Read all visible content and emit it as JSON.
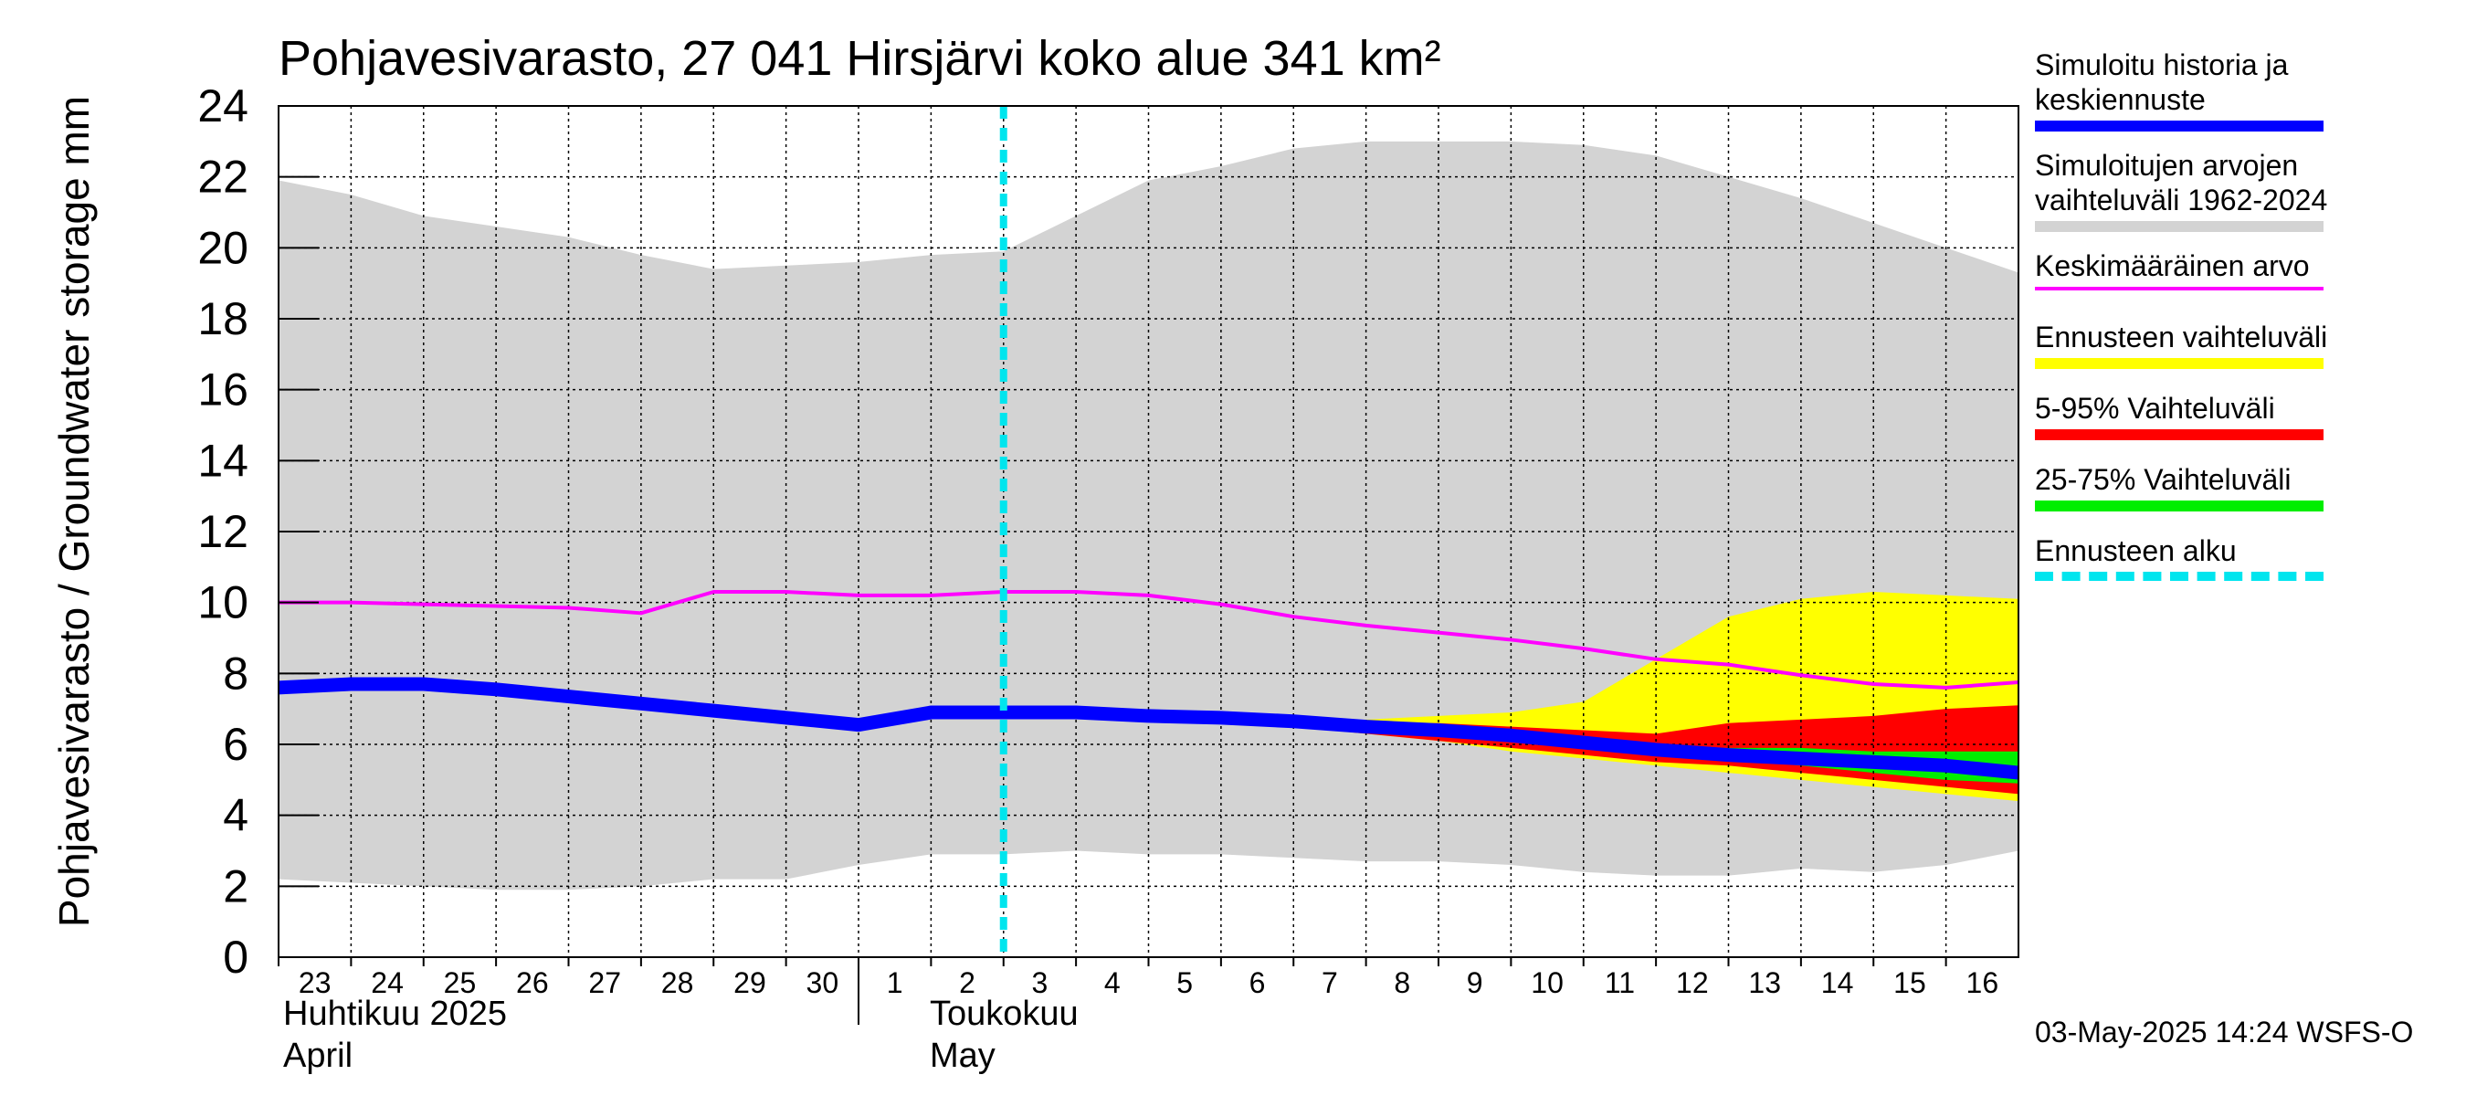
{
  "chart_data": {
    "type": "area",
    "title": "Pohjavesivarasto, 27 041 Hirsjärvi koko alue 341 km²",
    "ylabel": "Pohjavesivarasto / Groundwater storage   mm",
    "ylim": [
      0,
      24
    ],
    "yticks": [
      "0",
      "2",
      "4",
      "6",
      "8",
      "10",
      "12",
      "14",
      "16",
      "18",
      "20",
      "22",
      "24"
    ],
    "x_day_labels": [
      "23",
      "24",
      "25",
      "26",
      "27",
      "28",
      "29",
      "30",
      "1",
      "2",
      "3",
      "4",
      "5",
      "6",
      "7",
      "8",
      "9",
      "10",
      "11",
      "12",
      "13",
      "14",
      "15",
      "16"
    ],
    "month_labels": [
      {
        "fi": "Huhtikuu  2025",
        "en": "April"
      },
      {
        "fi": "Toukokuu",
        "en": "May"
      }
    ],
    "grid": true,
    "legend_position": "right",
    "forecast_start": "2025-05-03",
    "series": [
      {
        "name": "Simuloitujen arvojen vaihteluväli 1962-2024",
        "color": "#d3d3d3",
        "kind": "band",
        "x": [
          "2025-04-23",
          "2025-04-24",
          "2025-04-25",
          "2025-04-26",
          "2025-04-27",
          "2025-04-28",
          "2025-04-29",
          "2025-04-30",
          "2025-05-01",
          "2025-05-02",
          "2025-05-03",
          "2025-05-04",
          "2025-05-05",
          "2025-05-06",
          "2025-05-07",
          "2025-05-08",
          "2025-05-09",
          "2025-05-10",
          "2025-05-11",
          "2025-05-12",
          "2025-05-13",
          "2025-05-14",
          "2025-05-15",
          "2025-05-16",
          "2025-05-17"
        ],
        "upper": [
          21.9,
          21.5,
          20.9,
          20.6,
          20.3,
          19.8,
          19.4,
          19.5,
          19.6,
          19.8,
          19.9,
          20.9,
          21.9,
          22.3,
          22.8,
          23.0,
          23.0,
          23.0,
          22.9,
          22.6,
          22.0,
          21.4,
          20.7,
          20.0,
          19.3
        ],
        "lower": [
          2.2,
          2.1,
          2.0,
          1.9,
          1.9,
          2.0,
          2.2,
          2.2,
          2.6,
          2.9,
          2.9,
          3.0,
          2.9,
          2.9,
          2.8,
          2.7,
          2.7,
          2.6,
          2.4,
          2.3,
          2.3,
          2.5,
          2.4,
          2.6,
          3.0
        ]
      },
      {
        "name": "Ennusteen vaihteluväli",
        "color": "#ffff00",
        "kind": "band",
        "x": [
          "2025-05-07",
          "2025-05-08",
          "2025-05-09",
          "2025-05-10",
          "2025-05-11",
          "2025-05-12",
          "2025-05-13",
          "2025-05-14",
          "2025-05-15",
          "2025-05-16",
          "2025-05-17"
        ],
        "upper": [
          6.6,
          6.7,
          6.8,
          6.9,
          7.2,
          8.4,
          9.6,
          10.1,
          10.3,
          10.2,
          10.1
        ],
        "lower": [
          6.5,
          6.3,
          6.1,
          5.8,
          5.6,
          5.4,
          5.2,
          5.0,
          4.8,
          4.6,
          4.4
        ]
      },
      {
        "name": "5-95% Vaihteluväli",
        "color": "#ff0000",
        "kind": "band",
        "x": [
          "2025-05-07",
          "2025-05-08",
          "2025-05-09",
          "2025-05-10",
          "2025-05-11",
          "2025-05-12",
          "2025-05-13",
          "2025-05-14",
          "2025-05-15",
          "2025-05-16",
          "2025-05-17"
        ],
        "upper": [
          6.6,
          6.6,
          6.6,
          6.5,
          6.4,
          6.3,
          6.6,
          6.7,
          6.8,
          7.0,
          7.1
        ],
        "lower": [
          6.5,
          6.3,
          6.1,
          5.9,
          5.7,
          5.5,
          5.4,
          5.2,
          5.0,
          4.8,
          4.6
        ]
      },
      {
        "name": "25-75% Vaihteluväli",
        "color": "#00ee00",
        "kind": "band",
        "x": [
          "2025-05-07",
          "2025-05-08",
          "2025-05-09",
          "2025-05-10",
          "2025-05-11",
          "2025-05-12",
          "2025-05-13",
          "2025-05-14",
          "2025-05-15",
          "2025-05-16",
          "2025-05-17"
        ],
        "upper": [
          6.6,
          6.5,
          6.4,
          6.2,
          6.1,
          5.9,
          5.9,
          5.9,
          5.8,
          5.8,
          5.8
        ],
        "lower": [
          6.6,
          6.5,
          6.3,
          6.1,
          5.9,
          5.8,
          5.6,
          5.4,
          5.2,
          5.0,
          4.9
        ]
      },
      {
        "name": "Keskimääräinen arvo",
        "color": "#ff00ff",
        "kind": "line",
        "x": [
          "2025-04-23",
          "2025-04-24",
          "2025-04-25",
          "2025-04-26",
          "2025-04-27",
          "2025-04-28",
          "2025-04-29",
          "2025-04-30",
          "2025-05-01",
          "2025-05-02",
          "2025-05-03",
          "2025-05-04",
          "2025-05-05",
          "2025-05-06",
          "2025-05-07",
          "2025-05-08",
          "2025-05-09",
          "2025-05-10",
          "2025-05-11",
          "2025-05-12",
          "2025-05-13",
          "2025-05-14",
          "2025-05-15",
          "2025-05-16",
          "2025-05-17"
        ],
        "y": [
          10.0,
          10.0,
          9.95,
          9.9,
          9.85,
          9.7,
          10.3,
          10.3,
          10.2,
          10.2,
          10.3,
          10.3,
          10.2,
          9.95,
          9.6,
          9.35,
          9.15,
          8.95,
          8.7,
          8.4,
          8.25,
          7.95,
          7.7,
          7.6,
          7.75
        ]
      },
      {
        "name": "Simuloitu historia ja\nkeskiennuste",
        "color": "#0000ff",
        "kind": "line",
        "x": [
          "2025-04-23",
          "2025-04-24",
          "2025-04-25",
          "2025-04-26",
          "2025-04-27",
          "2025-04-28",
          "2025-04-29",
          "2025-04-30",
          "2025-05-01",
          "2025-05-02",
          "2025-05-03",
          "2025-05-04",
          "2025-05-05",
          "2025-05-06",
          "2025-05-07",
          "2025-05-08",
          "2025-05-09",
          "2025-05-10",
          "2025-05-11",
          "2025-05-12",
          "2025-05-13",
          "2025-05-14",
          "2025-05-15",
          "2025-05-16",
          "2025-05-17"
        ],
        "y": [
          7.6,
          7.7,
          7.7,
          7.55,
          7.35,
          7.15,
          6.95,
          6.75,
          6.55,
          6.9,
          6.9,
          6.9,
          6.8,
          6.75,
          6.65,
          6.5,
          6.4,
          6.25,
          6.05,
          5.85,
          5.7,
          5.6,
          5.5,
          5.4,
          5.2
        ]
      },
      {
        "name": "Ennusteen alku",
        "color": "#00e5ee",
        "kind": "vline",
        "x": "2025-05-03"
      }
    ]
  },
  "legend": [
    {
      "label": "Simuloitu historia ja\nkeskiennuste",
      "color": "#0000ff",
      "style": "thick"
    },
    {
      "label": "Simuloitujen arvojen\nvaihteluväli 1962-2024",
      "color": "#d3d3d3",
      "style": "thick"
    },
    {
      "label": "Keskimääräinen arvo",
      "color": "#ff00ff",
      "style": "thin"
    },
    {
      "label": "Ennusteen vaihteluväli",
      "color": "#ffff00",
      "style": "thick"
    },
    {
      "label": "5-95% Vaihteluväli",
      "color": "#ff0000",
      "style": "thick"
    },
    {
      "label": "25-75% Vaihteluväli",
      "color": "#00ee00",
      "style": "thick"
    },
    {
      "label": "Ennusteen alku",
      "color": "#00e5ee",
      "style": "dashed"
    }
  ],
  "timestamp": "03-May-2025 14:24 WSFS-O"
}
